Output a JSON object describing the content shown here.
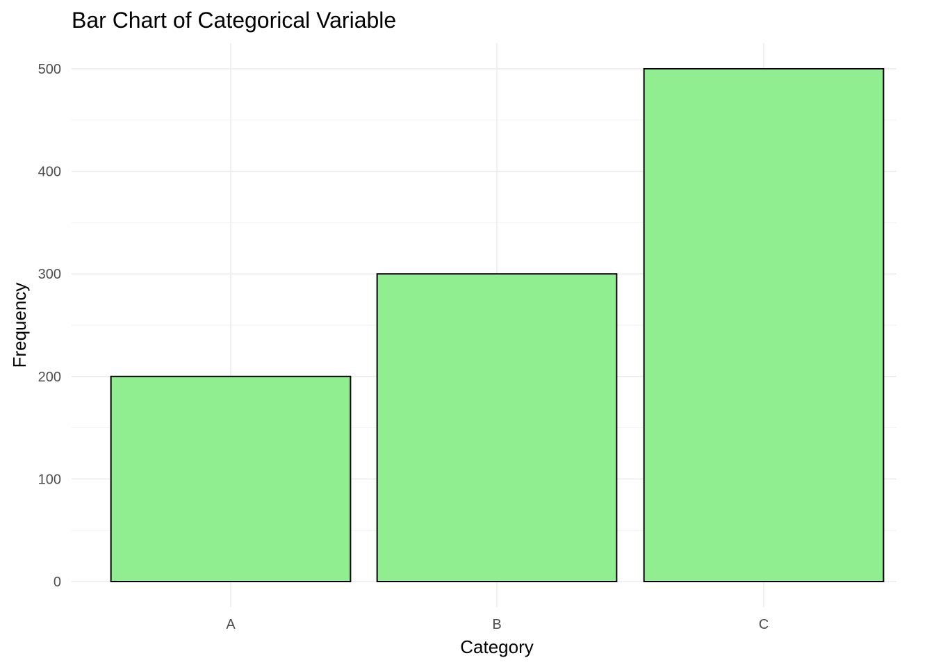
{
  "chart_data": {
    "type": "bar",
    "title": "Bar Chart of Categorical Variable",
    "xlabel": "Category",
    "ylabel": "Frequency",
    "categories": [
      "A",
      "B",
      "C"
    ],
    "values": [
      200,
      300,
      500
    ],
    "ylim": [
      0,
      525
    ],
    "yticks": [
      0,
      100,
      200,
      300,
      400,
      500
    ],
    "grid": true,
    "bar_fill": "#90ee90",
    "bar_stroke": "#000000",
    "legend": "none"
  }
}
